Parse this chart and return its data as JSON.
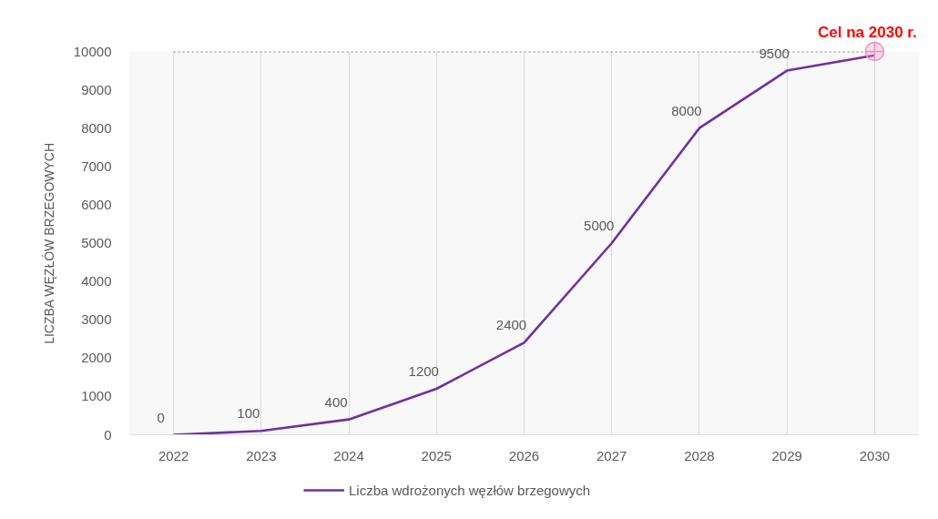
{
  "chart_data": {
    "type": "line",
    "ylabel": "LICZBA WĘZŁÓW BRZEGOWYCH",
    "categories": [
      "2022",
      "2023",
      "2024",
      "2025",
      "2026",
      "2027",
      "2028",
      "2029",
      "2030"
    ],
    "series": [
      {
        "name": "Liczba wdrożonych węzłów brzegowych",
        "color": "#7030a0",
        "values": [
          0,
          100,
          400,
          1200,
          2400,
          5000,
          8000,
          9500,
          9900
        ],
        "value_labels": [
          "0",
          "100",
          "400",
          "1200",
          "2400",
          "5000",
          "8000",
          "9500",
          null
        ]
      },
      {
        "type": "scatter",
        "values": [
          null,
          null,
          null,
          null,
          null,
          null,
          null,
          null,
          10000
        ],
        "color": "#e899c4",
        "marker": "circle"
      }
    ],
    "ylim": [
      0,
      10000
    ],
    "yticks": [
      0,
      1000,
      2000,
      3000,
      4000,
      5000,
      6000,
      7000,
      8000,
      9000,
      10000
    ],
    "grid": "x",
    "legend": "bottom",
    "ref_lines": [
      {
        "axis": "y",
        "value": 10000,
        "color": "#7f7f7f",
        "line_style": "dotted"
      }
    ],
    "annotations": [
      {
        "text": "Cel na 2030 r.",
        "x": "2030",
        "y": 10000
      }
    ]
  }
}
